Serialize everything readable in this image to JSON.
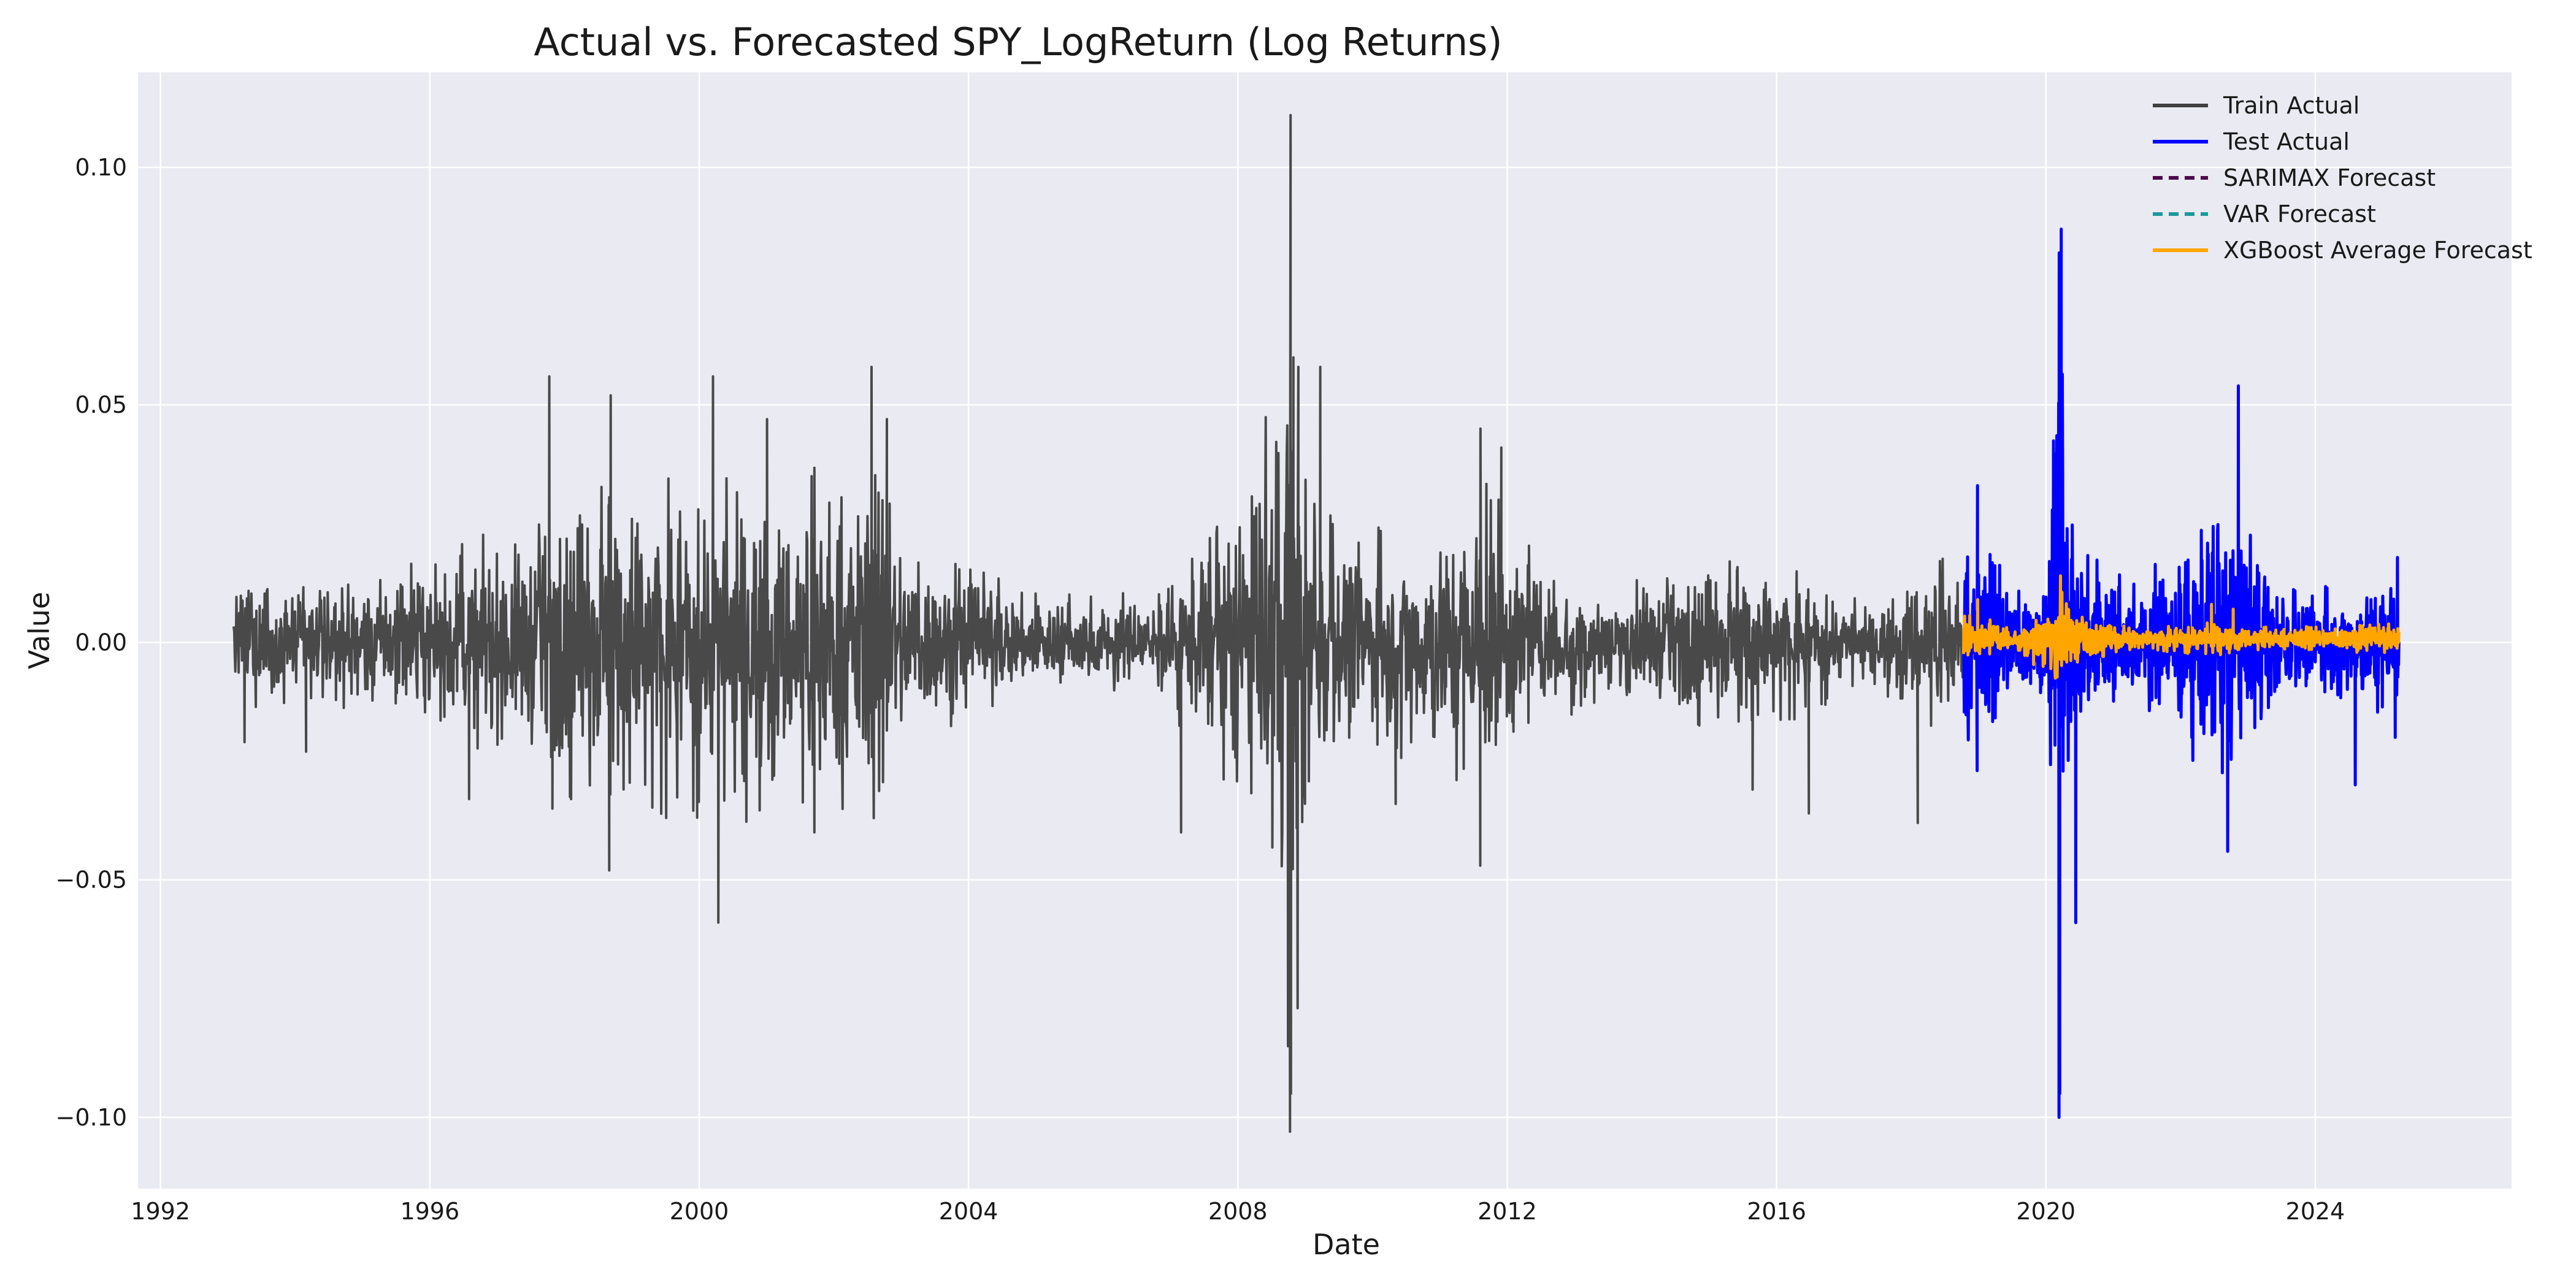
{
  "chart_data": {
    "type": "line",
    "title": "Actual vs. Forecasted SPY_LogReturn (Log Returns)",
    "xlabel": "Date",
    "ylabel": "Value",
    "x_ticks": [
      "1992",
      "1996",
      "2000",
      "2004",
      "2008",
      "2012",
      "2016",
      "2020",
      "2024"
    ],
    "y_ticks": [
      {
        "value": 0.1,
        "label": "0.10"
      },
      {
        "value": 0.05,
        "label": "0.05"
      },
      {
        "value": 0.0,
        "label": "0.00"
      },
      {
        "value": -0.05,
        "label": "−0.05"
      },
      {
        "value": -0.1,
        "label": "−0.10"
      }
    ],
    "xlim": [
      "1991-09-01",
      "2026-12-01"
    ],
    "ylim": [
      -0.115,
      0.12
    ],
    "grid": true,
    "legend_position": "top-right",
    "colors": {
      "background": "#eaeaf2",
      "grid": "#ffffff",
      "train": "#404040",
      "test": "#0000ff",
      "sarimax": "#4b0a4b",
      "var": "#1a9a9a",
      "xgboost": "#ffa500"
    },
    "series": [
      {
        "name": "Train Actual",
        "key": "train",
        "style": "solid",
        "x_start": "1993-02-01",
        "x_end": "2018-10-10",
        "envelope": [
          {
            "t": "1993-02-01",
            "a": 0.012
          },
          {
            "t": "1994-06-01",
            "a": 0.01
          },
          {
            "t": "1996-01-01",
            "a": 0.014
          },
          {
            "t": "1997-06-01",
            "a": 0.022
          },
          {
            "t": "1998-09-01",
            "a": 0.03
          },
          {
            "t": "2000-06-01",
            "a": 0.028
          },
          {
            "t": "2002-07-01",
            "a": 0.03
          },
          {
            "t": "2003-06-01",
            "a": 0.016
          },
          {
            "t": "2005-01-01",
            "a": 0.009
          },
          {
            "t": "2006-06-01",
            "a": 0.008
          },
          {
            "t": "2007-06-01",
            "a": 0.016
          },
          {
            "t": "2008-10-01",
            "a": 0.045
          },
          {
            "t": "2009-06-01",
            "a": 0.022
          },
          {
            "t": "2010-05-01",
            "a": 0.018
          },
          {
            "t": "2011-09-01",
            "a": 0.03
          },
          {
            "t": "2012-06-01",
            "a": 0.014
          },
          {
            "t": "2013-06-01",
            "a": 0.01
          },
          {
            "t": "2015-08-01",
            "a": 0.016
          },
          {
            "t": "2016-06-01",
            "a": 0.012
          },
          {
            "t": "2017-06-01",
            "a": 0.006
          },
          {
            "t": "2018-03-01",
            "a": 0.016
          },
          {
            "t": "2018-10-10",
            "a": 0.012
          }
        ],
        "spikes": [
          {
            "t": "1993-04-01",
            "v": -0.021
          },
          {
            "t": "1994-03-01",
            "v": -0.023
          },
          {
            "t": "1996-08-01",
            "v": -0.033
          },
          {
            "t": "1997-10-10",
            "v": 0.056
          },
          {
            "t": "1997-10-27",
            "v": -0.035
          },
          {
            "t": "1998-08-31",
            "v": -0.048
          },
          {
            "t": "1998-09-08",
            "v": 0.052
          },
          {
            "t": "1999-01-01",
            "v": 0.026
          },
          {
            "t": "2000-03-16",
            "v": 0.056
          },
          {
            "t": "2000-04-14",
            "v": -0.059
          },
          {
            "t": "2001-01-03",
            "v": 0.047
          },
          {
            "t": "2001-09-17",
            "v": -0.04
          },
          {
            "t": "2002-07-24",
            "v": 0.058
          },
          {
            "t": "2002-08-05",
            "v": -0.037
          },
          {
            "t": "2002-10-15",
            "v": 0.047
          },
          {
            "t": "2007-02-27",
            "v": -0.04
          },
          {
            "t": "2008-09-29",
            "v": -0.085
          },
          {
            "t": "2008-10-10",
            "v": -0.103
          },
          {
            "t": "2008-10-13",
            "v": 0.111
          },
          {
            "t": "2008-10-15",
            "v": -0.095
          },
          {
            "t": "2008-10-28",
            "v": 0.06
          },
          {
            "t": "2008-11-20",
            "v": -0.077
          },
          {
            "t": "2008-11-24",
            "v": 0.058
          },
          {
            "t": "2009-03-23",
            "v": 0.058
          },
          {
            "t": "2010-05-06",
            "v": -0.034
          },
          {
            "t": "2011-08-08",
            "v": -0.047
          },
          {
            "t": "2011-08-09",
            "v": 0.045
          },
          {
            "t": "2011-11-30",
            "v": 0.041
          },
          {
            "t": "2015-08-24",
            "v": -0.031
          },
          {
            "t": "2016-06-24",
            "v": -0.036
          },
          {
            "t": "2018-02-05",
            "v": -0.038
          }
        ]
      },
      {
        "name": "Test Actual",
        "key": "test",
        "style": "solid",
        "x_start": "2018-10-11",
        "x_end": "2025-03-31",
        "envelope": [
          {
            "t": "2018-10-11",
            "a": 0.018
          },
          {
            "t": "2019-01-01",
            "a": 0.016
          },
          {
            "t": "2019-08-01",
            "a": 0.012
          },
          {
            "t": "2020-01-01",
            "a": 0.008
          },
          {
            "t": "2020-03-15",
            "a": 0.06
          },
          {
            "t": "2020-05-01",
            "a": 0.022
          },
          {
            "t": "2020-11-01",
            "a": 0.014
          },
          {
            "t": "2021-06-01",
            "a": 0.01
          },
          {
            "t": "2022-01-01",
            "a": 0.018
          },
          {
            "t": "2022-10-01",
            "a": 0.024
          },
          {
            "t": "2023-06-01",
            "a": 0.01
          },
          {
            "t": "2024-06-01",
            "a": 0.009
          },
          {
            "t": "2025-03-31",
            "a": 0.016
          }
        ],
        "spikes": [
          {
            "t": "2018-12-24",
            "v": -0.027
          },
          {
            "t": "2018-12-26",
            "v": 0.033
          },
          {
            "t": "2020-03-12",
            "v": -0.1
          },
          {
            "t": "2020-03-13",
            "v": 0.082
          },
          {
            "t": "2020-03-16",
            "v": -0.095
          },
          {
            "t": "2020-03-24",
            "v": 0.087
          },
          {
            "t": "2020-06-11",
            "v": -0.059
          },
          {
            "t": "2022-09-13",
            "v": -0.044
          },
          {
            "t": "2022-11-10",
            "v": 0.054
          },
          {
            "t": "2024-08-05",
            "v": -0.03
          },
          {
            "t": "2025-03-10",
            "v": -0.02
          }
        ]
      },
      {
        "name": "SARIMAX Forecast",
        "key": "sarimax",
        "style": "dashed",
        "x_start": "2018-10-11",
        "x_end": "2025-03-31",
        "constant": 0.0005
      },
      {
        "name": "VAR Forecast",
        "key": "var",
        "style": "dashed",
        "x_start": "2018-10-11",
        "x_end": "2025-03-31",
        "constant": 0.0005
      },
      {
        "name": "XGBoost Average Forecast",
        "key": "xgboost",
        "style": "solid",
        "x_start": "2018-10-11",
        "x_end": "2025-03-31",
        "envelope": [
          {
            "t": "2018-10-11",
            "a": 0.005
          },
          {
            "t": "2019-01-01",
            "a": 0.004
          },
          {
            "t": "2019-08-01",
            "a": 0.002
          },
          {
            "t": "2020-03-15",
            "a": 0.01
          },
          {
            "t": "2020-08-01",
            "a": 0.004
          },
          {
            "t": "2021-06-01",
            "a": 0.002
          },
          {
            "t": "2022-06-01",
            "a": 0.003
          },
          {
            "t": "2023-06-01",
            "a": 0.002
          },
          {
            "t": "2025-03-31",
            "a": 0.003
          }
        ],
        "spikes": [
          {
            "t": "2018-12-27",
            "v": 0.009
          },
          {
            "t": "2020-03-20",
            "v": 0.014
          },
          {
            "t": "2022-06-17",
            "v": 0.008
          },
          {
            "t": "2022-10-13",
            "v": 0.007
          }
        ]
      }
    ]
  }
}
